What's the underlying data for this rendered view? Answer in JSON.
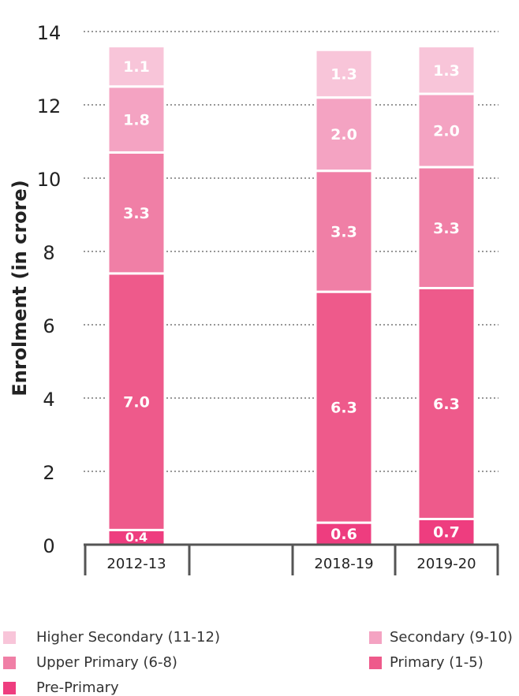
{
  "chart_data": {
    "type": "bar",
    "stacked": true,
    "categories": [
      "2012-13",
      "",
      "2018-19",
      "2019-20"
    ],
    "series": [
      {
        "name": "Pre-Primary",
        "color": "#ee3d7f",
        "values": [
          0.4,
          null,
          0.6,
          0.7
        ],
        "labels": [
          "0.4",
          "",
          "0.6",
          "0.7"
        ]
      },
      {
        "name": "Primary (1-5)",
        "color": "#ee5a8b",
        "values": [
          7.0,
          null,
          6.3,
          6.3
        ],
        "labels": [
          "7.0",
          "",
          "6.3",
          "6.3"
        ]
      },
      {
        "name": "Upper Primary (6-8)",
        "color": "#f07fa6",
        "values": [
          3.3,
          null,
          3.3,
          3.3
        ],
        "labels": [
          "3.3",
          "",
          "3.3",
          "3.3"
        ]
      },
      {
        "name": "Secondary (9-10)",
        "color": "#f4a3c2",
        "values": [
          1.8,
          null,
          2.0,
          2.0
        ],
        "labels": [
          "1.8",
          "",
          "2.0",
          "2.0"
        ]
      },
      {
        "name": "Higher Secondary (11-12)",
        "color": "#f8c5d9",
        "values": [
          1.1,
          null,
          1.3,
          1.3
        ],
        "labels": [
          "1.1",
          "",
          "1.3",
          "1.3"
        ]
      }
    ],
    "ylabel": "Enrolment (in crore)",
    "ylim": [
      0,
      14
    ],
    "yticks": [
      0,
      2,
      4,
      6,
      8,
      10,
      12,
      14
    ],
    "grid": true,
    "legend_position": "bottom"
  }
}
